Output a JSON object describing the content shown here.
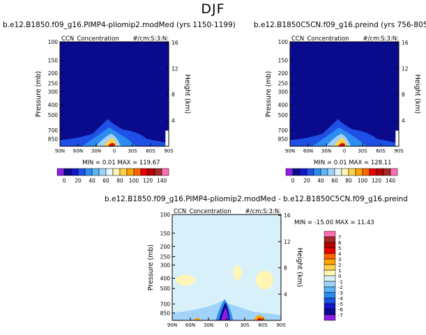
{
  "page_title": "DJF",
  "panels": [
    {
      "id": "top-left",
      "title": "b.e12.B1850.f09_g16.PIMP4-pliomip2.modMed (yrs 1150-1199)",
      "left_label": "CCN_Concentration",
      "right_label": "#/cm:S:3:N:",
      "min_max": "MIN =   0.01   MAX =  119.67"
    },
    {
      "id": "top-right",
      "title": "b.e12.B1850C5CN.f09_g16.preind (yrs 756-805)",
      "left_label": "CCN_Concentration",
      "right_label": "#/cm:S:3:N:",
      "min_max": "MIN =   0.01   MAX =  128.11"
    },
    {
      "id": "bottom",
      "title": "b.e12.B1850.f09_g16.PIMP4-pliomip2.modMed - b.e12.B1850C5CN.f09_g16.preind",
      "left_label": "CCN_Concentration",
      "right_label": "#/cm:S:3:N:",
      "min_max": "MIN = -15.00   MAX =  11.43"
    }
  ],
  "colors": {
    "top_levels": [
      "#8c1fe6",
      "#0a0a8c",
      "#1414c8",
      "#1e50e6",
      "#2d8cf0",
      "#5ab4f5",
      "#a0d2fa",
      "#e6f5ff",
      "#fff5b4",
      "#ffd24b",
      "#ffa500",
      "#ff6400",
      "#eb0000",
      "#b40000",
      "#a52a2a",
      "#ff6eb4"
    ],
    "diff_levels": [
      "#8c1fe6",
      "#0a0a8c",
      "#1414c8",
      "#1e50e6",
      "#2d8cf0",
      "#5ab4f5",
      "#a0d2fa",
      "#d7f0fa",
      "#fff5b4",
      "#ffd24b",
      "#ffa500",
      "#ff6400",
      "#eb0000",
      "#b40000",
      "#a52a2a",
      "#ff6eb4"
    ]
  },
  "chart_data": [
    {
      "type": "heatmap",
      "title": "b.e12.B1850.f09_g16.PIMP4-pliomip2.modMed (yrs 1150-1199)",
      "xlabel": "",
      "ylabel": "Pressure (mb)",
      "y2label": "Height (km)",
      "x_ticks": [
        "90N",
        "60N",
        "30N",
        "0",
        "30S",
        "60S",
        "90S"
      ],
      "y_ticks": [
        "100",
        "150",
        "200",
        "250",
        "300",
        "400",
        "500",
        "700",
        "850"
      ],
      "y2_ticks": [
        "16",
        "12",
        "8",
        "4"
      ],
      "xlim": [
        90,
        -90
      ],
      "ylim": [
        1000,
        100
      ],
      "y_scale": "log",
      "colorbar": {
        "orientation": "horizontal",
        "tick_labels": [
          "0",
          "20",
          "40",
          "60",
          "80",
          "100",
          "120",
          "140"
        ]
      },
      "min": 0.01,
      "max": 119.67
    },
    {
      "type": "heatmap",
      "title": "b.e12.B1850C5CN.f09_g16.preind (yrs 756-805)",
      "xlabel": "",
      "ylabel": "Pressure (mb)",
      "y2label": "Height (km)",
      "x_ticks": [
        "90N",
        "60N",
        "30N",
        "0",
        "30S",
        "60S",
        "90S"
      ],
      "y_ticks": [
        "100",
        "150",
        "200",
        "250",
        "300",
        "400",
        "500",
        "700",
        "850"
      ],
      "y2_ticks": [
        "16",
        "12",
        "8",
        "4"
      ],
      "xlim": [
        90,
        -90
      ],
      "ylim": [
        1000,
        100
      ],
      "y_scale": "log",
      "colorbar": {
        "orientation": "horizontal",
        "tick_labels": [
          "0",
          "20",
          "40",
          "60",
          "80",
          "100",
          "120",
          "140"
        ]
      },
      "min": 0.01,
      "max": 128.11
    },
    {
      "type": "heatmap",
      "title": "b.e12.B1850.f09_g16.PIMP4-pliomip2.modMed - b.e12.B1850C5CN.f09_g16.preind",
      "xlabel": "",
      "ylabel": "Pressure (mb)",
      "y2label": "Height (km)",
      "x_ticks": [
        "90N",
        "60N",
        "30N",
        "0",
        "30S",
        "60S",
        "90S"
      ],
      "y_ticks": [
        "100",
        "150",
        "200",
        "250",
        "300",
        "400",
        "500",
        "700",
        "850"
      ],
      "y2_ticks": [
        "16",
        "12",
        "8",
        "4"
      ],
      "xlim": [
        90,
        -90
      ],
      "ylim": [
        1000,
        100
      ],
      "y_scale": "log",
      "colorbar": {
        "orientation": "vertical",
        "tick_labels": [
          "7",
          "6",
          "5",
          "4",
          "3",
          "2",
          "1",
          "0",
          "-1",
          "-2",
          "-3",
          "-4",
          "-5",
          "-6",
          "-7"
        ]
      },
      "min": -15.0,
      "max": 11.43
    }
  ]
}
